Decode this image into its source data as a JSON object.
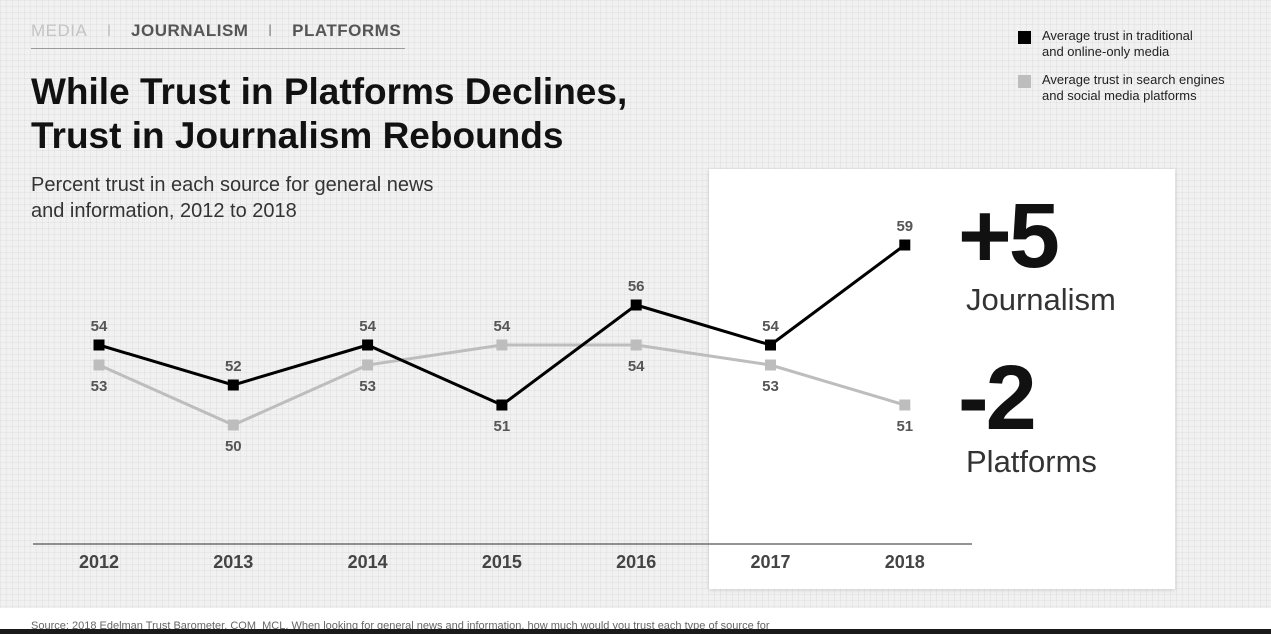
{
  "breadcrumb": {
    "media": "MEDIA",
    "sep": "I",
    "journalism": "JOURNALISM",
    "platforms": "PLATFORMS"
  },
  "title_lines": [
    "While Trust in Platforms Declines,",
    "Trust in Journalism Rebounds"
  ],
  "subtitle_lines": [
    "Percent trust in each source for general news",
    "and information, 2012 to 2018"
  ],
  "legend": [
    {
      "line1": "Average trust in traditional",
      "line2": "and online-only media",
      "color": "#000000"
    },
    {
      "line1": "Average trust in search engines",
      "line2": "and social media platforms",
      "color": "#bdbdbd"
    }
  ],
  "callouts": {
    "journalism": {
      "value": "+5",
      "label": "Journalism"
    },
    "platforms": {
      "value": "-2",
      "label": "Platforms"
    }
  },
  "source_text": "Source: 2018 Edelman Trust Barometer. COM_MCL. When looking for general news and information, how much would you trust each type of source for",
  "chart_data": {
    "type": "line",
    "title": "While Trust in Platforms Declines, Trust in Journalism Rebounds",
    "subtitle": "Percent trust in each source for general news and information, 2012 to 2018",
    "xlabel": "",
    "ylabel": "",
    "x": [
      "2012",
      "2013",
      "2014",
      "2015",
      "2016",
      "2017",
      "2018"
    ],
    "ylim": [
      48,
      61
    ],
    "grid": false,
    "legend_position": "top-right",
    "series": [
      {
        "name": "Average trust in traditional and online-only media",
        "values": [
          54,
          52,
          54,
          51,
          56,
          54,
          59
        ],
        "color": "#000000"
      },
      {
        "name": "Average trust in search engines and social media platforms",
        "values": [
          53,
          50,
          53,
          54,
          54,
          53,
          51
        ],
        "color": "#bdbdbd"
      }
    ]
  }
}
